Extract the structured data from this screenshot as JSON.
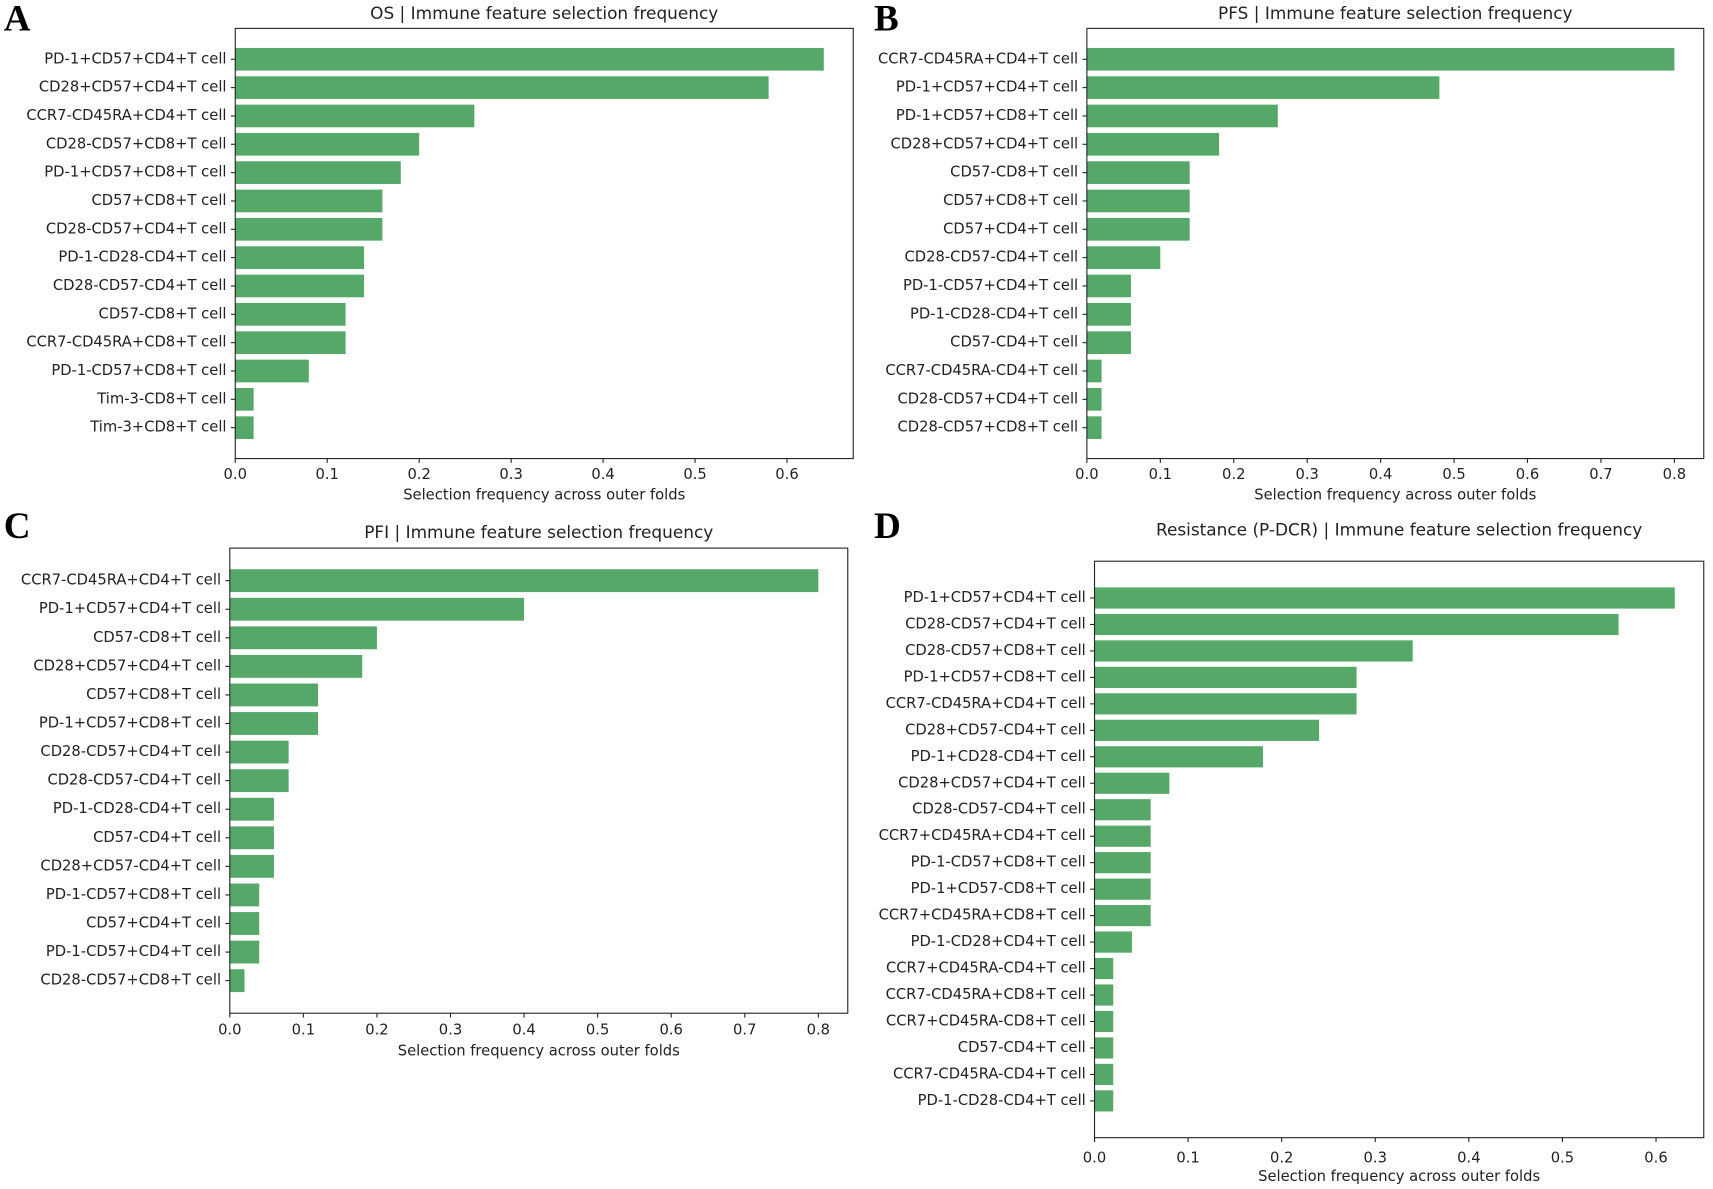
{
  "chart_data": [
    {
      "type": "bar",
      "orientation": "horizontal",
      "panel": "A",
      "title": "OS | Immune feature selection frequency",
      "xlabel": "Selection frequency across outer folds",
      "color": "#55a868",
      "categories": [
        "PD-1+CD57+CD4+T cell",
        "CD28+CD57+CD4+T cell",
        "CCR7-CD45RA+CD4+T cell",
        "CD28-CD57+CD8+T cell",
        "PD-1+CD57+CD8+T cell",
        "CD57+CD8+T cell",
        "CD28-CD57+CD4+T cell",
        "PD-1-CD28-CD4+T cell",
        "CD28-CD57-CD4+T cell",
        "CD57-CD8+T cell",
        "CCR7-CD45RA+CD8+T cell",
        "PD-1-CD57+CD8+T cell",
        "Tim-3-CD8+T cell",
        "Tim-3+CD8+T cell"
      ],
      "values": [
        0.64,
        0.58,
        0.26,
        0.2,
        0.18,
        0.16,
        0.16,
        0.14,
        0.14,
        0.12,
        0.12,
        0.08,
        0.02,
        0.02
      ],
      "xlim": [
        0,
        0.672
      ],
      "xticks": [
        {
          "value": 0,
          "label": "0.0"
        },
        0.1,
        0.2,
        0.3,
        0.4,
        0.5,
        0.6
      ]
    },
    {
      "type": "bar",
      "orientation": "horizontal",
      "panel": "B",
      "title": "PFS | Immune feature selection frequency",
      "xlabel": "Selection frequency across outer folds",
      "color": "#55a868",
      "categories": [
        "CCR7-CD45RA+CD4+T cell",
        "PD-1+CD57+CD4+T cell",
        "PD-1+CD57+CD8+T cell",
        "CD28+CD57+CD4+T cell",
        "CD57-CD8+T cell",
        "CD57+CD8+T cell",
        "CD57+CD4+T cell",
        "CD28-CD57-CD4+T cell",
        "PD-1-CD57+CD4+T cell",
        "PD-1-CD28-CD4+T cell",
        "CD57-CD4+T cell",
        "CCR7-CD45RA-CD4+T cell",
        "CD28-CD57+CD4+T cell",
        "CD28-CD57+CD8+T cell"
      ],
      "values": [
        0.8,
        0.48,
        0.26,
        0.18,
        0.14,
        0.14,
        0.14,
        0.1,
        0.06,
        0.06,
        0.06,
        0.02,
        0.02,
        0.02
      ],
      "xlim": [
        0,
        0.84
      ],
      "xticks": [
        {
          "value": 0,
          "label": "0.0"
        },
        0.1,
        0.2,
        0.3,
        0.4,
        0.5,
        0.6,
        0.7,
        0.8
      ]
    },
    {
      "type": "bar",
      "orientation": "horizontal",
      "panel": "C",
      "title": "PFI | Immune feature selection frequency",
      "xlabel": "Selection frequency across outer folds",
      "color": "#55a868",
      "categories": [
        "CCR7-CD45RA+CD4+T cell",
        "PD-1+CD57+CD4+T cell",
        "CD57-CD8+T cell",
        "CD28+CD57+CD4+T cell",
        "CD57+CD8+T cell",
        "PD-1+CD57+CD8+T cell",
        "CD28-CD57+CD4+T cell",
        "CD28-CD57-CD4+T cell",
        "PD-1-CD28-CD4+T cell",
        "CD57-CD4+T cell",
        "CD28+CD57-CD4+T cell",
        "PD-1-CD57+CD8+T cell",
        "CD57+CD4+T cell",
        "PD-1-CD57+CD4+T cell",
        "CD28-CD57+CD8+T cell"
      ],
      "values": [
        0.8,
        0.4,
        0.2,
        0.18,
        0.12,
        0.12,
        0.08,
        0.08,
        0.06,
        0.06,
        0.06,
        0.04,
        0.04,
        0.04,
        0.02
      ],
      "xlim": [
        0,
        0.84
      ],
      "xticks": [
        {
          "value": 0,
          "label": "0.0"
        },
        0.1,
        0.2,
        0.3,
        0.4,
        0.5,
        0.6,
        0.7,
        0.8
      ]
    },
    {
      "type": "bar",
      "orientation": "horizontal",
      "panel": "D",
      "title": "Resistance (P-DCR) | Immune feature selection frequency",
      "xlabel": "Selection frequency across outer folds",
      "color": "#55a868",
      "categories": [
        "PD-1+CD57+CD4+T cell",
        "CD28-CD57+CD4+T cell",
        "CD28-CD57+CD8+T cell",
        "PD-1+CD57+CD8+T cell",
        "CCR7-CD45RA+CD4+T cell",
        "CD28+CD57-CD4+T cell",
        "PD-1+CD28-CD4+T cell",
        "CD28+CD57+CD4+T cell",
        "CD28-CD57-CD4+T cell",
        "CCR7+CD45RA+CD4+T cell",
        "PD-1-CD57+CD8+T cell",
        "PD-1+CD57-CD8+T cell",
        "CCR7+CD45RA+CD8+T cell",
        "PD-1-CD28+CD4+T cell",
        "CCR7+CD45RA-CD4+T cell",
        "CCR7-CD45RA+CD8+T cell",
        "CCR7+CD45RA-CD8+T cell",
        "CD57-CD4+T cell",
        "CCR7-CD45RA-CD4+T cell",
        "PD-1-CD28-CD4+T cell"
      ],
      "values": [
        0.62,
        0.56,
        0.34,
        0.28,
        0.28,
        0.24,
        0.18,
        0.08,
        0.06,
        0.06,
        0.06,
        0.06,
        0.06,
        0.04,
        0.02,
        0.02,
        0.02,
        0.02,
        0.02,
        0.02
      ],
      "xlim": [
        0,
        0.651
      ],
      "xticks": [
        {
          "value": 0,
          "label": "0.0"
        },
        0.1,
        0.2,
        0.3,
        0.4,
        0.5,
        0.6
      ]
    }
  ]
}
